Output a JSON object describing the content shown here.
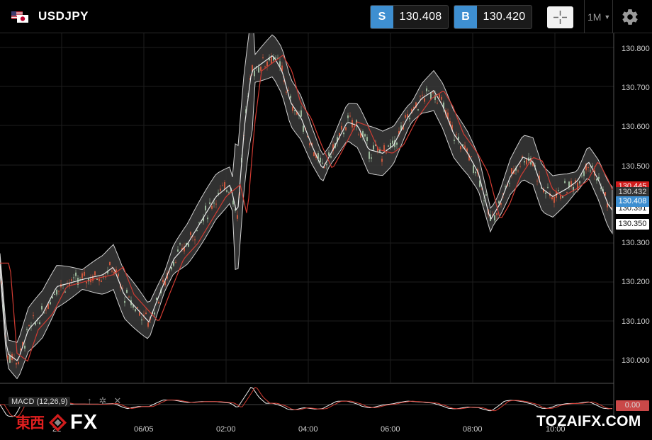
{
  "header": {
    "symbol": "USDJPY",
    "sell": {
      "tag": "S",
      "price": "130.408"
    },
    "buy": {
      "tag": "B",
      "price": "130.420"
    },
    "timeframe": "1M",
    "icons": {
      "flag": "us-jp-flag-icon",
      "crosshair": "crosshair-icon",
      "settings": "gear-icon",
      "dropdown": "caret-down-icon"
    }
  },
  "price_axis": {
    "labels": [
      "130.800",
      "130.700",
      "130.600",
      "130.500",
      "130.300",
      "130.200",
      "130.100",
      "130.000"
    ]
  },
  "price_tags": {
    "red": "130.445",
    "dark_hidden": "130.432",
    "blue": "130.408",
    "white_top": "130.391",
    "white_low": "130.350"
  },
  "time_axis": {
    "labels": [
      "22",
      "06/05",
      "02:00",
      "04:00",
      "06:00",
      "08:00",
      "10:00"
    ]
  },
  "indicator": {
    "label": "MACD (12,26,9)",
    "value_tag": "0.00"
  },
  "colors": {
    "accent": "#3e8fd1",
    "red_tag": "#d11c1c",
    "blue_tag": "#3e8fd1",
    "ma_red": "#d13b32",
    "band": "#555555",
    "up_candle": "#9ab79a",
    "down_candle": "#c9573d"
  },
  "logos": {
    "left_kanji": "東西",
    "left_fx": "FX",
    "right": "TOZAIFX.COM"
  }
}
